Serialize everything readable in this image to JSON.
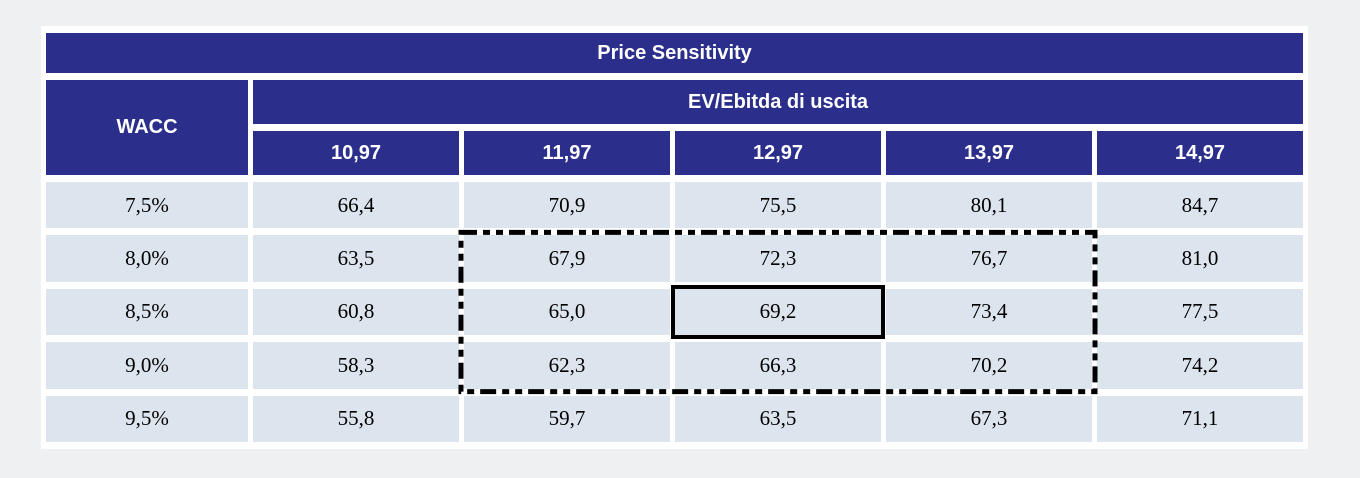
{
  "title": "Price Sensitivity",
  "table": {
    "row_axis_label": "WACC",
    "column_axis_label": "EV/Ebitda di uscita",
    "column_headers": [
      "10,97",
      "11,97",
      "12,97",
      "13,97",
      "14,97"
    ],
    "rows": [
      {
        "wacc": "7,5%",
        "values": [
          "66,4",
          "70,9",
          "75,5",
          "80,1",
          "84,7"
        ]
      },
      {
        "wacc": "8,0%",
        "values": [
          "63,5",
          "67,9",
          "72,3",
          "76,7",
          "81,0"
        ]
      },
      {
        "wacc": "8,5%",
        "values": [
          "60,8",
          "65,0",
          "69,2",
          "73,4",
          "77,5"
        ]
      },
      {
        "wacc": "9,0%",
        "values": [
          "58,3",
          "62,3",
          "66,3",
          "70,2",
          "74,2"
        ]
      },
      {
        "wacc": "9,5%",
        "values": [
          "55,8",
          "59,7",
          "63,5",
          "67,3",
          "71,1"
        ]
      }
    ]
  },
  "highlights": {
    "solid_box": {
      "row_index": 2,
      "col_index": 2,
      "value": "69,2"
    },
    "dashed_box": {
      "row_start": 1,
      "row_end": 3,
      "col_start": 1,
      "col_end": 3,
      "style": "dash-dot-dot"
    }
  },
  "colors": {
    "header_bg": "#2b2f8b",
    "header_text": "#ffffff",
    "cell_bg": "#dce4ee",
    "cell_text": "#000000",
    "page_bg": "#eef0f2",
    "card_bg": "#ffffff",
    "highlight_border": "#000000"
  },
  "chart_data": {
    "type": "table",
    "title": "Price Sensitivity",
    "row_axis_label": "WACC",
    "column_axis_label": "EV/Ebitda di uscita",
    "columns": [
      10.97,
      11.97,
      12.97,
      13.97,
      14.97
    ],
    "row_categories": [
      "7,5%",
      "8,0%",
      "8,5%",
      "9,0%",
      "9,5%"
    ],
    "values": [
      [
        66.4,
        70.9,
        75.5,
        80.1,
        84.7
      ],
      [
        63.5,
        67.9,
        72.3,
        76.7,
        81.0
      ],
      [
        60.8,
        65.0,
        69.2,
        73.4,
        77.5
      ],
      [
        58.3,
        62.3,
        66.3,
        70.2,
        74.2
      ],
      [
        55.8,
        59.7,
        63.5,
        67.3,
        71.1
      ]
    ],
    "highlighted_center_value": 69.2,
    "highlighted_region_rows": [
      "8,0%",
      "8,5%",
      "9,0%"
    ],
    "highlighted_region_columns": [
      11.97,
      12.97,
      13.97
    ],
    "decimal_separator": ",",
    "notes": "base-case cell 69,2 boxed solid; sensitivity band boxed with dash-dot-dot outline"
  }
}
